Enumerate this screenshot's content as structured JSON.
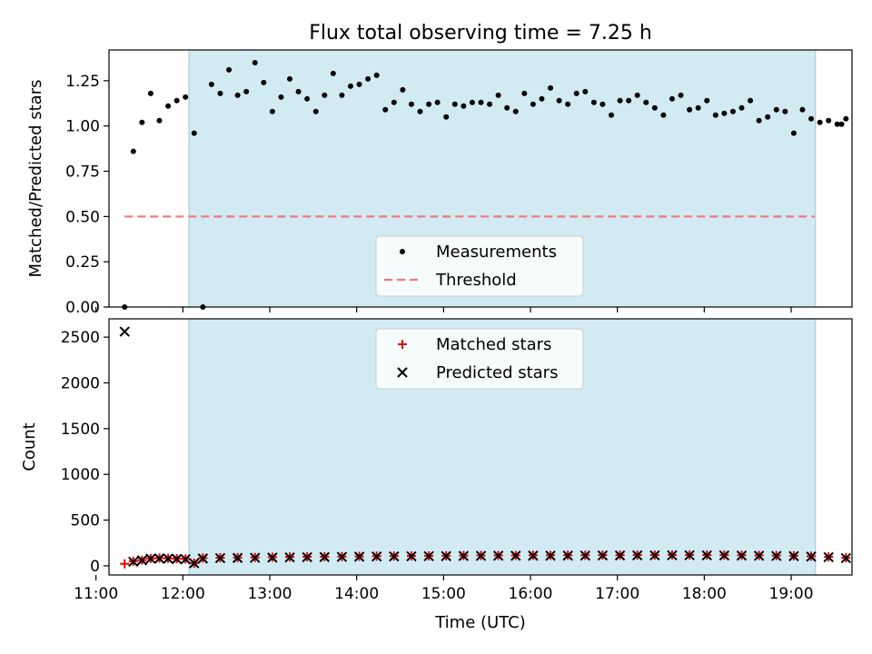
{
  "figure": {
    "title": "Flux total observing time = 7.25 h"
  },
  "colors": {
    "shade": "#add8e6",
    "threshold": "#f07b7b",
    "measurement": "#000000",
    "matched": "#e00000",
    "predicted": "#000000"
  },
  "x_axis": {
    "label": "Time (UTC)",
    "range_hours": [
      11.15,
      19.7
    ],
    "ticks": [
      {
        "h": 11,
        "label": "11:00"
      },
      {
        "h": 12,
        "label": "12:00"
      },
      {
        "h": 13,
        "label": "13:00"
      },
      {
        "h": 14,
        "label": "14:00"
      },
      {
        "h": 15,
        "label": "15:00"
      },
      {
        "h": 16,
        "label": "16:00"
      },
      {
        "h": 17,
        "label": "17:00"
      },
      {
        "h": 18,
        "label": "18:00"
      },
      {
        "h": 19,
        "label": "19:00"
      }
    ],
    "shaded_interval_hours": [
      12.07,
      19.28
    ]
  },
  "chart_data": [
    {
      "type": "scatter",
      "panel": "top",
      "ylabel": "Matched/Predicted stars",
      "ylim": [
        0,
        1.42
      ],
      "yticks": [
        {
          "v": 0,
          "label": "0.00"
        },
        {
          "v": 0.25,
          "label": "0.25"
        },
        {
          "v": 0.5,
          "label": "0.50"
        },
        {
          "v": 0.75,
          "label": "0.75"
        },
        {
          "v": 1.0,
          "label": "1.00"
        },
        {
          "v": 1.25,
          "label": "1.25"
        }
      ],
      "threshold": {
        "name": "Threshold",
        "value": 0.5,
        "x_range_hours": [
          11.33,
          19.27
        ]
      },
      "legend": {
        "placement": "lower-center",
        "entries": [
          "Measurements",
          "Threshold"
        ]
      },
      "series": [
        {
          "name": "Measurements",
          "x_hours": [
            11.33,
            11.43,
            11.53,
            11.63,
            11.73,
            11.83,
            11.93,
            12.03,
            12.13,
            12.23,
            12.33,
            12.43,
            12.53,
            12.63,
            12.73,
            12.83,
            12.93,
            13.03,
            13.13,
            13.23,
            13.33,
            13.43,
            13.53,
            13.63,
            13.73,
            13.83,
            13.93,
            14.03,
            14.13,
            14.23,
            14.33,
            14.43,
            14.53,
            14.63,
            14.73,
            14.83,
            14.93,
            15.03,
            15.13,
            15.23,
            15.33,
            15.43,
            15.53,
            15.63,
            15.73,
            15.83,
            15.93,
            16.03,
            16.13,
            16.23,
            16.33,
            16.43,
            16.53,
            16.63,
            16.73,
            16.83,
            16.93,
            17.03,
            17.13,
            17.23,
            17.33,
            17.43,
            17.53,
            17.63,
            17.73,
            17.83,
            17.93,
            18.03,
            18.13,
            18.23,
            18.33,
            18.43,
            18.53,
            18.63,
            18.73,
            18.83,
            18.93,
            19.03,
            19.13,
            19.23,
            19.33,
            19.43,
            19.53,
            19.58,
            19.63
          ],
          "y": [
            0.0,
            0.86,
            1.02,
            1.18,
            1.03,
            1.11,
            1.14,
            1.16,
            0.96,
            0.0,
            1.23,
            1.18,
            1.31,
            1.17,
            1.19,
            1.35,
            1.24,
            1.08,
            1.16,
            1.26,
            1.19,
            1.15,
            1.08,
            1.17,
            1.29,
            1.17,
            1.22,
            1.23,
            1.26,
            1.28,
            1.09,
            1.13,
            1.2,
            1.12,
            1.08,
            1.12,
            1.13,
            1.05,
            1.12,
            1.11,
            1.13,
            1.13,
            1.12,
            1.17,
            1.1,
            1.08,
            1.18,
            1.12,
            1.15,
            1.21,
            1.14,
            1.12,
            1.18,
            1.19,
            1.13,
            1.12,
            1.06,
            1.14,
            1.14,
            1.17,
            1.13,
            1.1,
            1.06,
            1.15,
            1.17,
            1.09,
            1.1,
            1.14,
            1.06,
            1.07,
            1.08,
            1.1,
            1.14,
            1.03,
            1.05,
            1.09,
            1.08,
            0.96,
            1.09,
            1.04,
            1.02,
            1.03,
            1.01,
            1.01,
            1.04
          ]
        }
      ]
    },
    {
      "type": "scatter",
      "panel": "bottom",
      "ylabel": "Count",
      "ylim": [
        -100,
        2700
      ],
      "yticks": [
        {
          "v": 0,
          "label": "0"
        },
        {
          "v": 500,
          "label": "500"
        },
        {
          "v": 1000,
          "label": "1000"
        },
        {
          "v": 1500,
          "label": "1500"
        },
        {
          "v": 2000,
          "label": "2000"
        },
        {
          "v": 2500,
          "label": "2500"
        }
      ],
      "legend": {
        "placement": "upper-center",
        "entries": [
          "Matched stars",
          "Predicted stars"
        ]
      },
      "series": [
        {
          "name": "Matched stars",
          "x_hours": [
            11.33,
            11.43,
            11.53,
            11.63,
            11.73,
            11.83,
            11.93,
            12.03,
            12.13,
            12.23,
            12.43,
            12.63,
            12.83,
            13.03,
            13.23,
            13.43,
            13.63,
            13.83,
            14.03,
            14.23,
            14.43,
            14.63,
            14.83,
            15.03,
            15.23,
            15.43,
            15.63,
            15.83,
            16.03,
            16.23,
            16.43,
            16.63,
            16.83,
            17.03,
            17.23,
            17.43,
            17.63,
            17.83,
            18.03,
            18.23,
            18.43,
            18.63,
            18.83,
            19.03,
            19.23,
            19.43,
            19.63
          ],
          "y": [
            22,
            50,
            62,
            80,
            85,
            82,
            78,
            76,
            30,
            85,
            88,
            90,
            92,
            95,
            97,
            99,
            100,
            102,
            104,
            106,
            107,
            108,
            109,
            110,
            112,
            113,
            114,
            114,
            115,
            115,
            116,
            116,
            117,
            117,
            118,
            118,
            119,
            119,
            118,
            117,
            116,
            114,
            112,
            110,
            105,
            98,
            88
          ]
        },
        {
          "name": "Predicted stars",
          "x_hours": [
            11.33,
            11.43,
            11.53,
            11.63,
            11.73,
            11.83,
            11.93,
            12.03,
            12.13,
            12.23,
            12.43,
            12.63,
            12.83,
            13.03,
            13.23,
            13.43,
            13.63,
            13.83,
            14.03,
            14.23,
            14.43,
            14.63,
            14.83,
            15.03,
            15.23,
            15.43,
            15.63,
            15.83,
            16.03,
            16.23,
            16.43,
            16.63,
            16.83,
            17.03,
            17.23,
            17.43,
            17.63,
            17.83,
            18.03,
            18.23,
            18.43,
            18.63,
            18.83,
            19.03,
            19.23,
            19.43,
            19.63
          ],
          "y": [
            2560,
            45,
            60,
            78,
            80,
            78,
            75,
            72,
            28,
            80,
            84,
            86,
            88,
            90,
            92,
            94,
            96,
            98,
            100,
            102,
            103,
            104,
            105,
            106,
            108,
            109,
            110,
            110,
            111,
            111,
            112,
            112,
            113,
            113,
            114,
            114,
            115,
            115,
            114,
            113,
            112,
            110,
            108,
            106,
            101,
            94,
            84
          ]
        }
      ]
    }
  ]
}
